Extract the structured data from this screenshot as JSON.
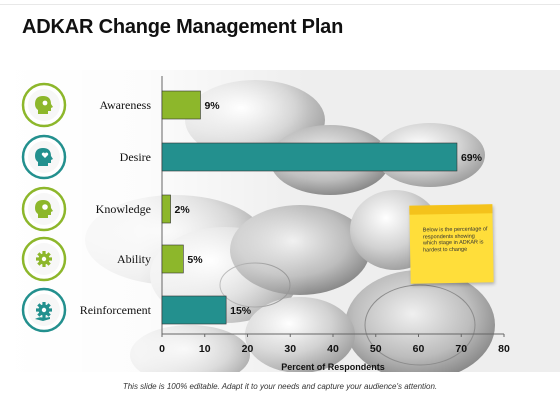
{
  "title": "ADKAR Change Management Plan",
  "footer": "This slide is 100% editable. Adapt it to your needs and capture your audience's attention.",
  "note": "Below is the percentage of respondents showing which stage in ADKAR is hardest to change",
  "colors": {
    "accent_green": "#8db72b",
    "teal": "#23908e",
    "sticky": "#ffde3a"
  },
  "stage_icons": [
    "head-gear-icon",
    "head-heart-icon",
    "head-bulb-icon",
    "gear-icon",
    "hand-gear-icon"
  ],
  "chart_data": {
    "type": "bar",
    "orientation": "horizontal",
    "categories": [
      "Awareness",
      "Desire",
      "Knowledge",
      "Ability",
      "Reinforcement"
    ],
    "values": [
      9,
      69,
      2,
      5,
      15
    ],
    "value_labels": [
      "9%",
      "69%",
      "2%",
      "5%",
      "15%"
    ],
    "bar_colors": [
      "#8db72b",
      "#23908e",
      "#8db72b",
      "#8db72b",
      "#23908e"
    ],
    "xlabel": "Percent of Respondents",
    "ylabel": "",
    "xlim": [
      0,
      80
    ],
    "xticks": [
      0,
      10,
      20,
      30,
      40,
      50,
      60,
      70,
      80
    ],
    "grid": false
  }
}
